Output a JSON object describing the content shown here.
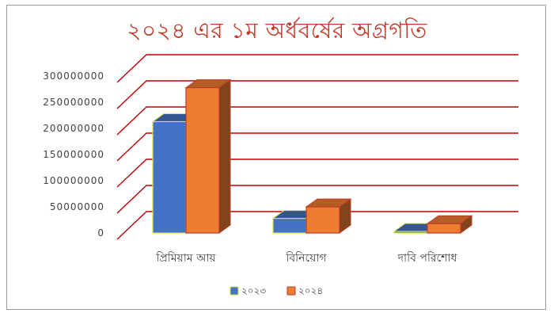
{
  "chart_data": {
    "type": "bar",
    "title": "২০২৪ এর ১ম অর্ধবর্ষের অগ্রগতি",
    "categories": [
      "প্রিমিয়াম আয়",
      "বিনিয়োগ",
      "দাবি পরিশোধ"
    ],
    "series": [
      {
        "name": "২০২৩",
        "values": [
          225000000,
          40000000,
          15000000
        ],
        "color": "#4472c4"
      },
      {
        "name": "২০২৪",
        "values": [
          290000000,
          62000000,
          30000000
        ],
        "color": "#ed7d31"
      }
    ],
    "y_ticks": [
      "0",
      "50000000",
      "100000000",
      "150000000",
      "200000000",
      "250000000",
      "300000000"
    ],
    "ylim": [
      0,
      300000000
    ],
    "grid": true,
    "grid_color": "#c00000",
    "legend_position": "bottom",
    "bar_style": "3d"
  }
}
